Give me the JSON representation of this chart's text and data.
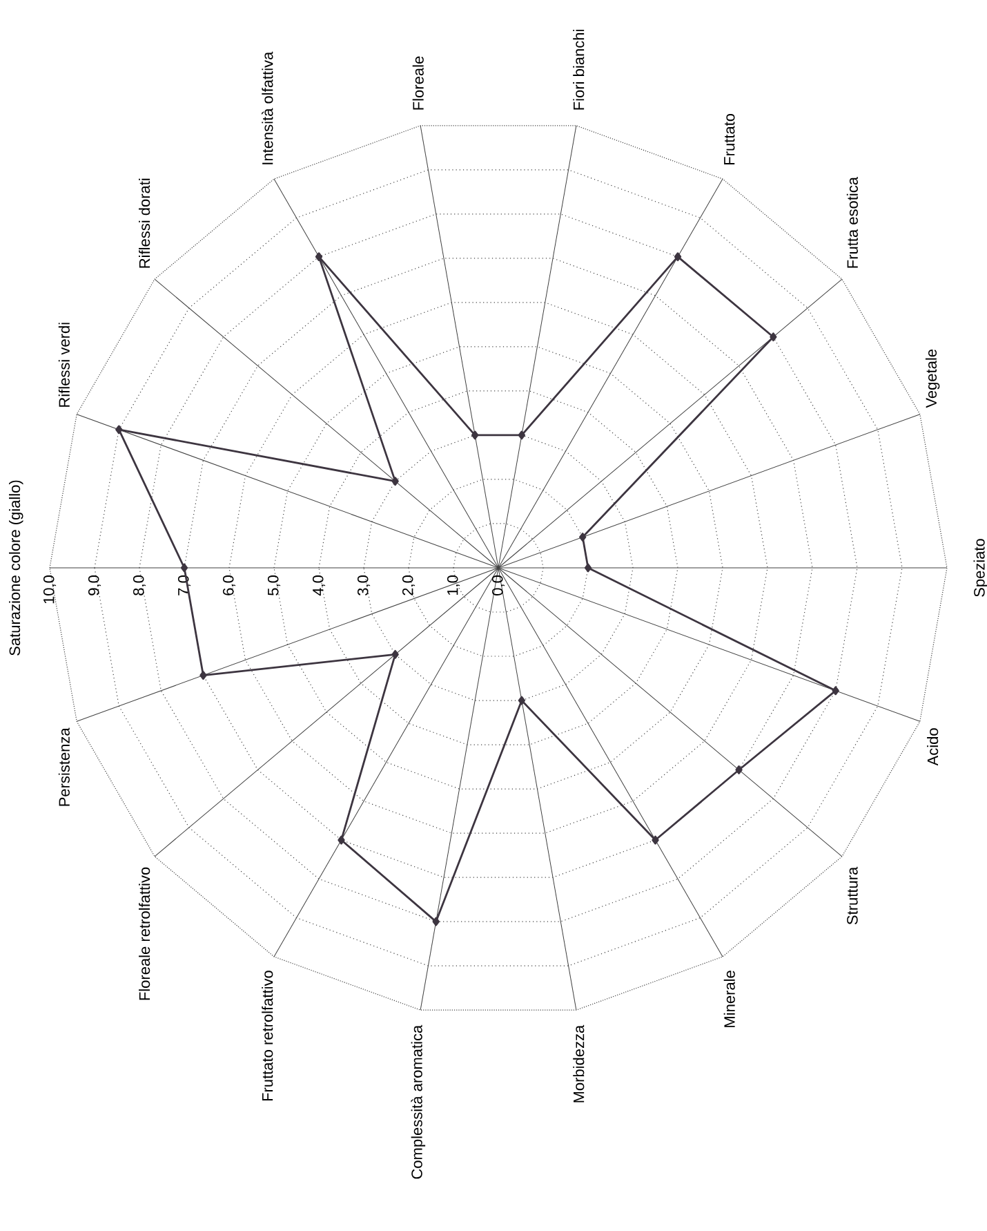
{
  "chart_data": {
    "type": "radar",
    "categories": [
      "Saturazione colore (giallo)",
      "Riflessi verdi",
      "Riflessi dorati",
      "Intensità olfattiva",
      "Floreale",
      "Fiori bianchi",
      "Fruttato",
      "Frutta esotica",
      "Vegetale",
      "Speziato",
      "Acido",
      "Struttura",
      "Minerale",
      "Morbidezza",
      "Complessità aromatica",
      "Fruttato retrolfattivo",
      "Floreale retrolfattivo",
      "Persistenza"
    ],
    "series": [
      {
        "color": "#3d3540",
        "values": [
          7,
          9,
          3,
          8,
          3,
          3,
          8,
          8,
          2,
          2,
          8,
          7,
          7,
          3,
          8,
          7,
          3,
          7
        ]
      }
    ],
    "ylim": [
      0,
      10
    ],
    "yticks": [
      {
        "value": 0,
        "label": "0,0"
      },
      {
        "value": 1,
        "label": "1,0"
      },
      {
        "value": 2,
        "label": "2,0"
      },
      {
        "value": 3,
        "label": "3,0"
      },
      {
        "value": 4,
        "label": "4,0"
      },
      {
        "value": 5,
        "label": "5,0"
      },
      {
        "value": 6,
        "label": "6,0"
      },
      {
        "value": 7,
        "label": "7,0"
      },
      {
        "value": 8,
        "label": "8,0"
      },
      {
        "value": 9,
        "label": "9,0"
      },
      {
        "value": 10,
        "label": "10,0"
      }
    ],
    "grid": true,
    "marker": "diamond",
    "line_style": "solid"
  }
}
